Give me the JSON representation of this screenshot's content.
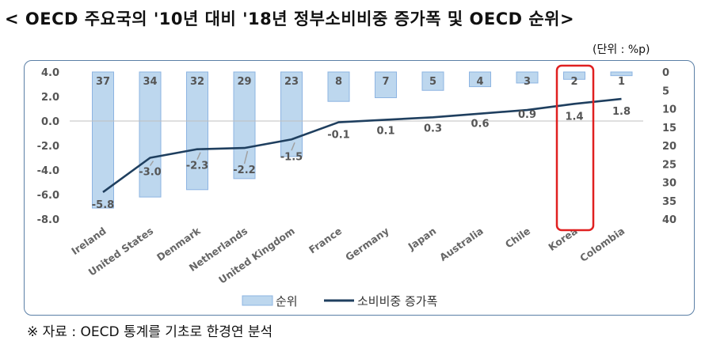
{
  "title": "< OECD 주요국의 '10년 대비 '18년 정부소비비중 증가폭 및 OECD 순위>",
  "unit_label": "(단위 : %p)",
  "source": "※ 자료 : OECD 통계를 기초로 한경연 분석",
  "chart_data": {
    "type": "bar+line",
    "categories": [
      "Ireland",
      "United States",
      "Denmark",
      "Netherlands",
      "United Kingdom",
      "France",
      "Germany",
      "Japan",
      "Australia",
      "Chile",
      "Korea",
      "Colombia"
    ],
    "series": [
      {
        "name": "순위",
        "type": "bar",
        "axis": "right",
        "values": [
          37,
          34,
          32,
          29,
          23,
          8,
          7,
          5,
          4,
          3,
          2,
          1
        ]
      },
      {
        "name": "소비비중 증가폭",
        "type": "line",
        "axis": "left",
        "values": [
          -5.8,
          -3.0,
          -2.3,
          -2.2,
          -1.5,
          -0.1,
          0.1,
          0.3,
          0.6,
          0.9,
          1.4,
          1.8
        ]
      }
    ],
    "left_axis": {
      "ticks": [
        "4.0",
        "2.0",
        "0.0",
        "-2.0",
        "-4.0",
        "-6.0",
        "-8.0"
      ],
      "ylim": [
        -8,
        4
      ]
    },
    "right_axis": {
      "ticks": [
        "0",
        "5",
        "10",
        "15",
        "20",
        "25",
        "30",
        "35",
        "40"
      ],
      "ylim": [
        0,
        40
      ],
      "inverted": true
    },
    "highlight": "Korea",
    "grid": false,
    "legend": "bottom",
    "colors": {
      "bar_fill": "#bdd7ee",
      "bar_stroke": "#8db4e2",
      "line": "#1f3f5f",
      "highlight": "#e02020",
      "frame": "#5b7fa6"
    }
  }
}
